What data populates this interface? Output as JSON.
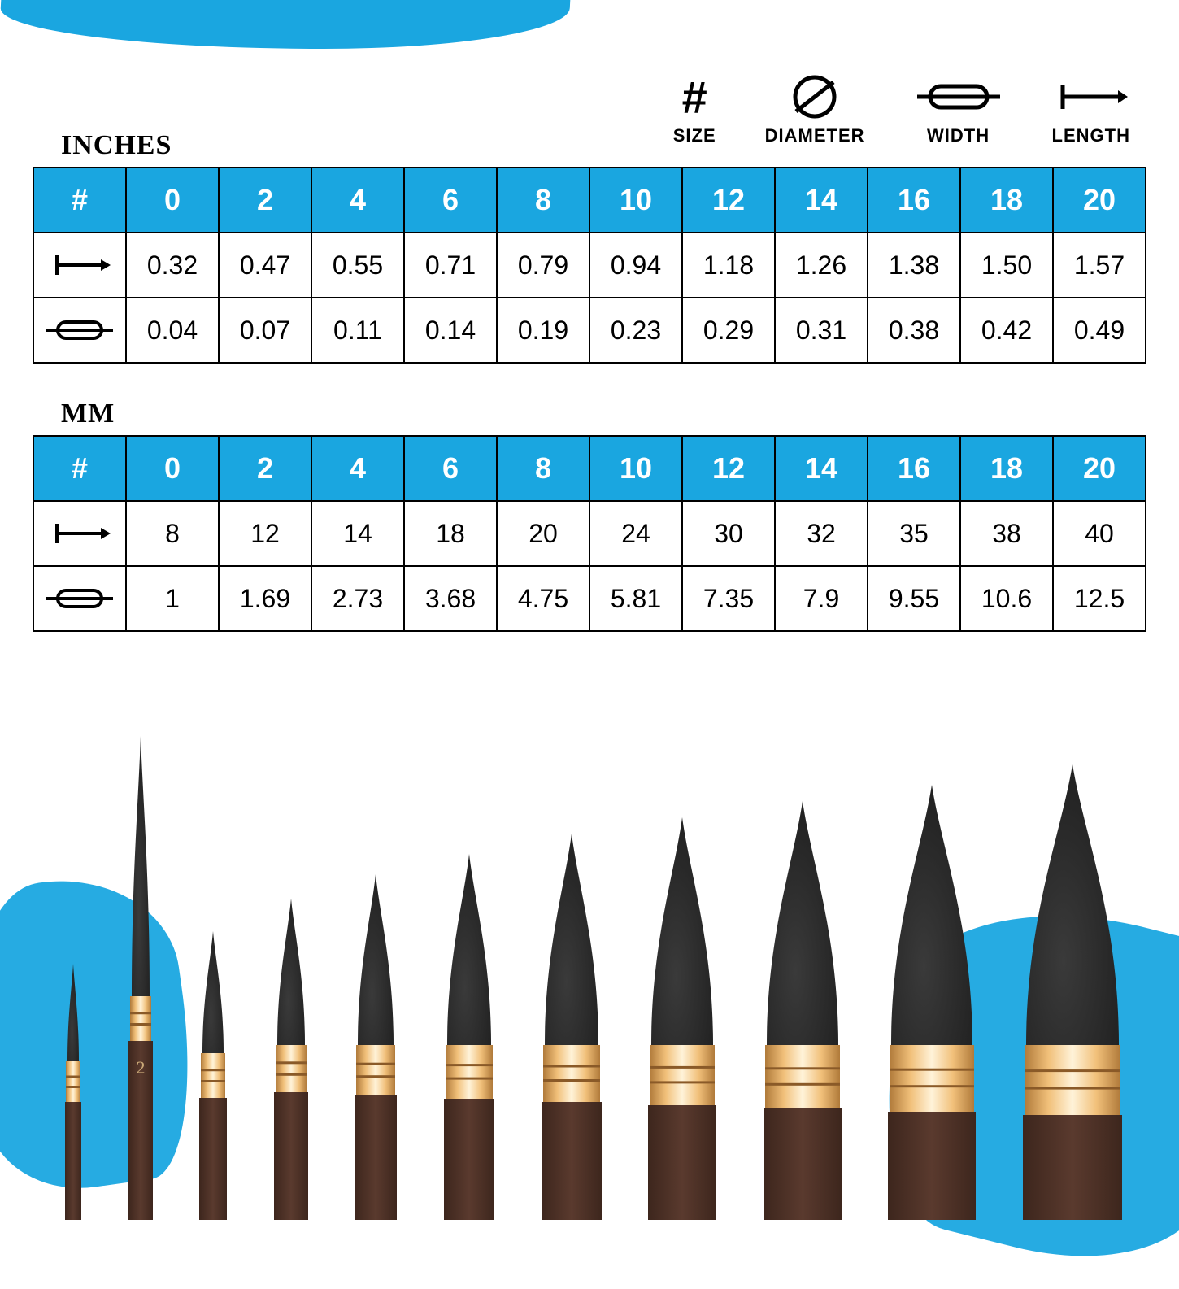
{
  "colors": {
    "accent": "#1aa6e0",
    "header_text": "#ffffff",
    "border": "#000000",
    "bristle": "#1a1a1a",
    "ferrule_light": "#f1c07a",
    "ferrule_dark": "#b07a3a",
    "handle": "#5a3a2e"
  },
  "legend": {
    "size": {
      "label": "SIZE",
      "glyph": "#"
    },
    "diameter": {
      "label": "DIAMETER"
    },
    "width": {
      "label": "WIDTH"
    },
    "length": {
      "label": "LENGTH"
    }
  },
  "tables": {
    "sizes": [
      "0",
      "2",
      "4",
      "6",
      "8",
      "10",
      "12",
      "14",
      "16",
      "18",
      "20"
    ],
    "inches": {
      "title": "INCHES",
      "length": [
        "0.32",
        "0.47",
        "0.55",
        "0.71",
        "0.79",
        "0.94",
        "1.18",
        "1.26",
        "1.38",
        "1.50",
        "1.57"
      ],
      "width": [
        "0.04",
        "0.07",
        "0.11",
        "0.14",
        "0.19",
        "0.23",
        "0.29",
        "0.31",
        "0.38",
        "0.42",
        "0.49"
      ]
    },
    "mm": {
      "title": "MM",
      "length": [
        "8",
        "12",
        "14",
        "18",
        "20",
        "24",
        "30",
        "32",
        "35",
        "38",
        "40"
      ],
      "width": [
        "1",
        "1.69",
        "2.73",
        "3.68",
        "4.75",
        "5.81",
        "7.35",
        "7.9",
        "9.55",
        "10.6",
        "12.5"
      ]
    }
  },
  "brushes": [
    {
      "size": "0",
      "tip_h": 120,
      "tip_w": 14,
      "ferrule_h": 50,
      "handle_w": 20,
      "total_h": 320,
      "label_shown": ""
    },
    {
      "size": "2",
      "tip_h": 320,
      "tip_w": 22,
      "ferrule_h": 55,
      "handle_w": 30,
      "total_h": 600,
      "label_shown": "2"
    },
    {
      "size": "4",
      "tip_h": 150,
      "tip_w": 26,
      "ferrule_h": 55,
      "handle_w": 34,
      "total_h": 360,
      "label_shown": ""
    },
    {
      "size": "6",
      "tip_h": 180,
      "tip_w": 34,
      "ferrule_h": 58,
      "handle_w": 42,
      "total_h": 400,
      "label_shown": ""
    },
    {
      "size": "8",
      "tip_h": 210,
      "tip_w": 44,
      "ferrule_h": 62,
      "handle_w": 52,
      "total_h": 430,
      "label_shown": ""
    },
    {
      "size": "10",
      "tip_h": 235,
      "tip_w": 54,
      "ferrule_h": 66,
      "handle_w": 62,
      "total_h": 455,
      "label_shown": ""
    },
    {
      "size": "12",
      "tip_h": 260,
      "tip_w": 66,
      "ferrule_h": 70,
      "handle_w": 74,
      "total_h": 480,
      "label_shown": ""
    },
    {
      "size": "14",
      "tip_h": 280,
      "tip_w": 76,
      "ferrule_h": 74,
      "handle_w": 84,
      "total_h": 500,
      "label_shown": ""
    },
    {
      "size": "16",
      "tip_h": 300,
      "tip_w": 88,
      "ferrule_h": 78,
      "handle_w": 96,
      "total_h": 520,
      "label_shown": ""
    },
    {
      "size": "18",
      "tip_h": 320,
      "tip_w": 100,
      "ferrule_h": 82,
      "handle_w": 108,
      "total_h": 540,
      "label_shown": ""
    },
    {
      "size": "20",
      "tip_h": 345,
      "tip_w": 114,
      "ferrule_h": 86,
      "handle_w": 122,
      "total_h": 565,
      "label_shown": ""
    }
  ]
}
